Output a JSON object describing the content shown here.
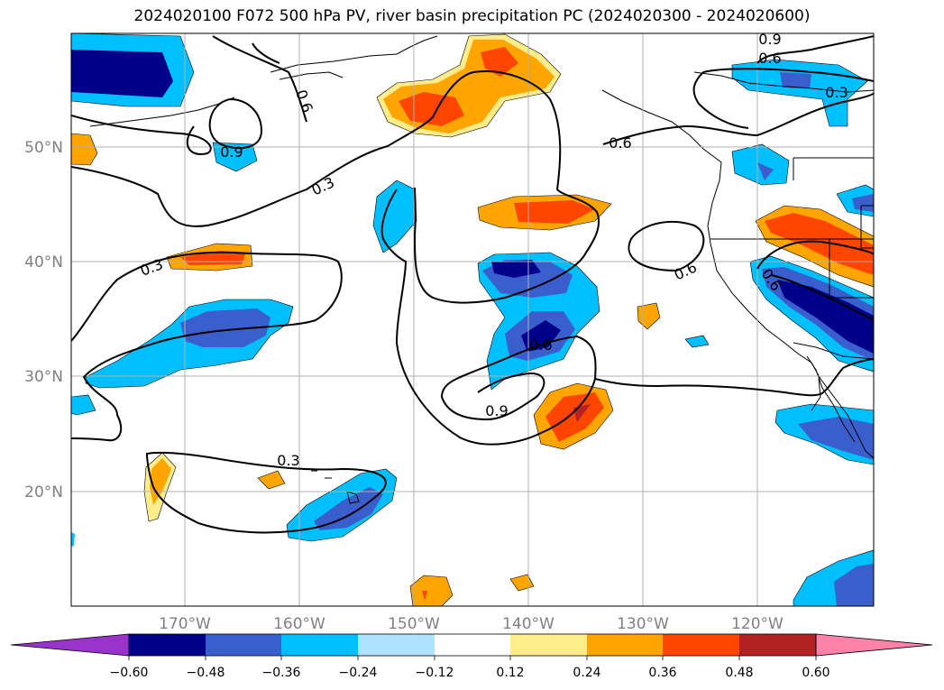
{
  "title": "2024020100 F072 500 hPa PV, river basin precipitation PC (2024020300 - 2024020600)",
  "lat_labels": [
    "50°N",
    "40°N",
    "30°N",
    "20°N"
  ],
  "lon_labels": [
    "170°W",
    "160°W",
    "150°W",
    "140°W",
    "130°W",
    "120°W"
  ],
  "contour_labels": [
    "0.9",
    "0.6",
    "0.6",
    "0.3",
    "0.6",
    "0.3",
    "0.9",
    "0.6",
    "0.3",
    "0.9",
    "0.6",
    "0.6",
    "0.3"
  ],
  "colorbar": {
    "ticks": [
      "−0.60",
      "−0.48",
      "−0.36",
      "−0.24",
      "−0.12",
      "0.12",
      "0.24",
      "0.36",
      "0.48",
      "0.60"
    ],
    "colors": [
      "#9933cc",
      "#00008b",
      "#3a5fcd",
      "#00bfff",
      "#b0e2ff",
      "#ffffff",
      "#ffec8b",
      "#ffa500",
      "#ff4500",
      "#b22222",
      "#ff82ab"
    ]
  }
}
